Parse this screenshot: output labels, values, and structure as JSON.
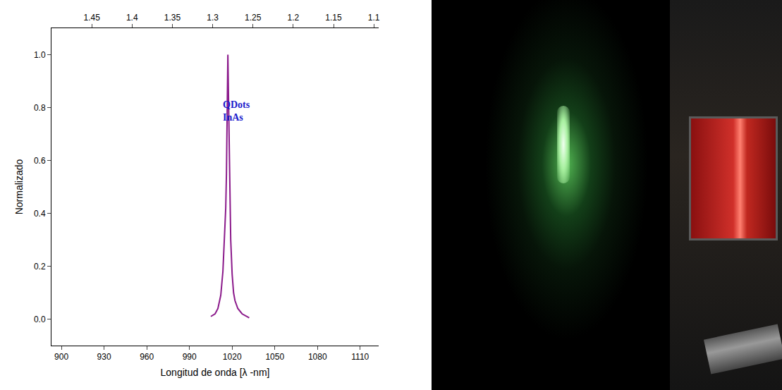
{
  "chart_data": {
    "type": "line",
    "x_label": "Longitud de onda [λ -nm]",
    "y_label": "Normalizado",
    "annotations": [
      "QDots",
      "InAs"
    ],
    "x": [
      1005,
      1008,
      1010,
      1012,
      1013.5,
      1014.5,
      1015.5,
      1016,
      1016.5,
      1017,
      1017.5,
      1018,
      1018.5,
      1019,
      1020,
      1021,
      1022,
      1024,
      1027,
      1030,
      1032
    ],
    "values": [
      0.01,
      0.02,
      0.04,
      0.09,
      0.18,
      0.3,
      0.42,
      0.55,
      0.8,
      1.0,
      0.82,
      0.6,
      0.42,
      0.3,
      0.17,
      0.1,
      0.07,
      0.04,
      0.02,
      0.01,
      0.005
    ],
    "color": "#8b1a8b",
    "xlim": [
      893,
      1123
    ],
    "xticks": [
      900,
      930,
      960,
      990,
      1020,
      1050,
      1080,
      1110
    ],
    "x2lim": [
      1.5,
      1.094
    ],
    "x2ticks": [
      1.45,
      1.4,
      1.35,
      1.3,
      1.25,
      1.2,
      1.15,
      1.1
    ],
    "ylim": [
      -0.1,
      1.1
    ],
    "yticks": [
      {
        "value": 0,
        "label": "0.0"
      },
      0.2,
      0.4,
      0.6,
      0.8,
      {
        "value": 1,
        "label": "1.0"
      }
    ],
    "grid": false
  }
}
